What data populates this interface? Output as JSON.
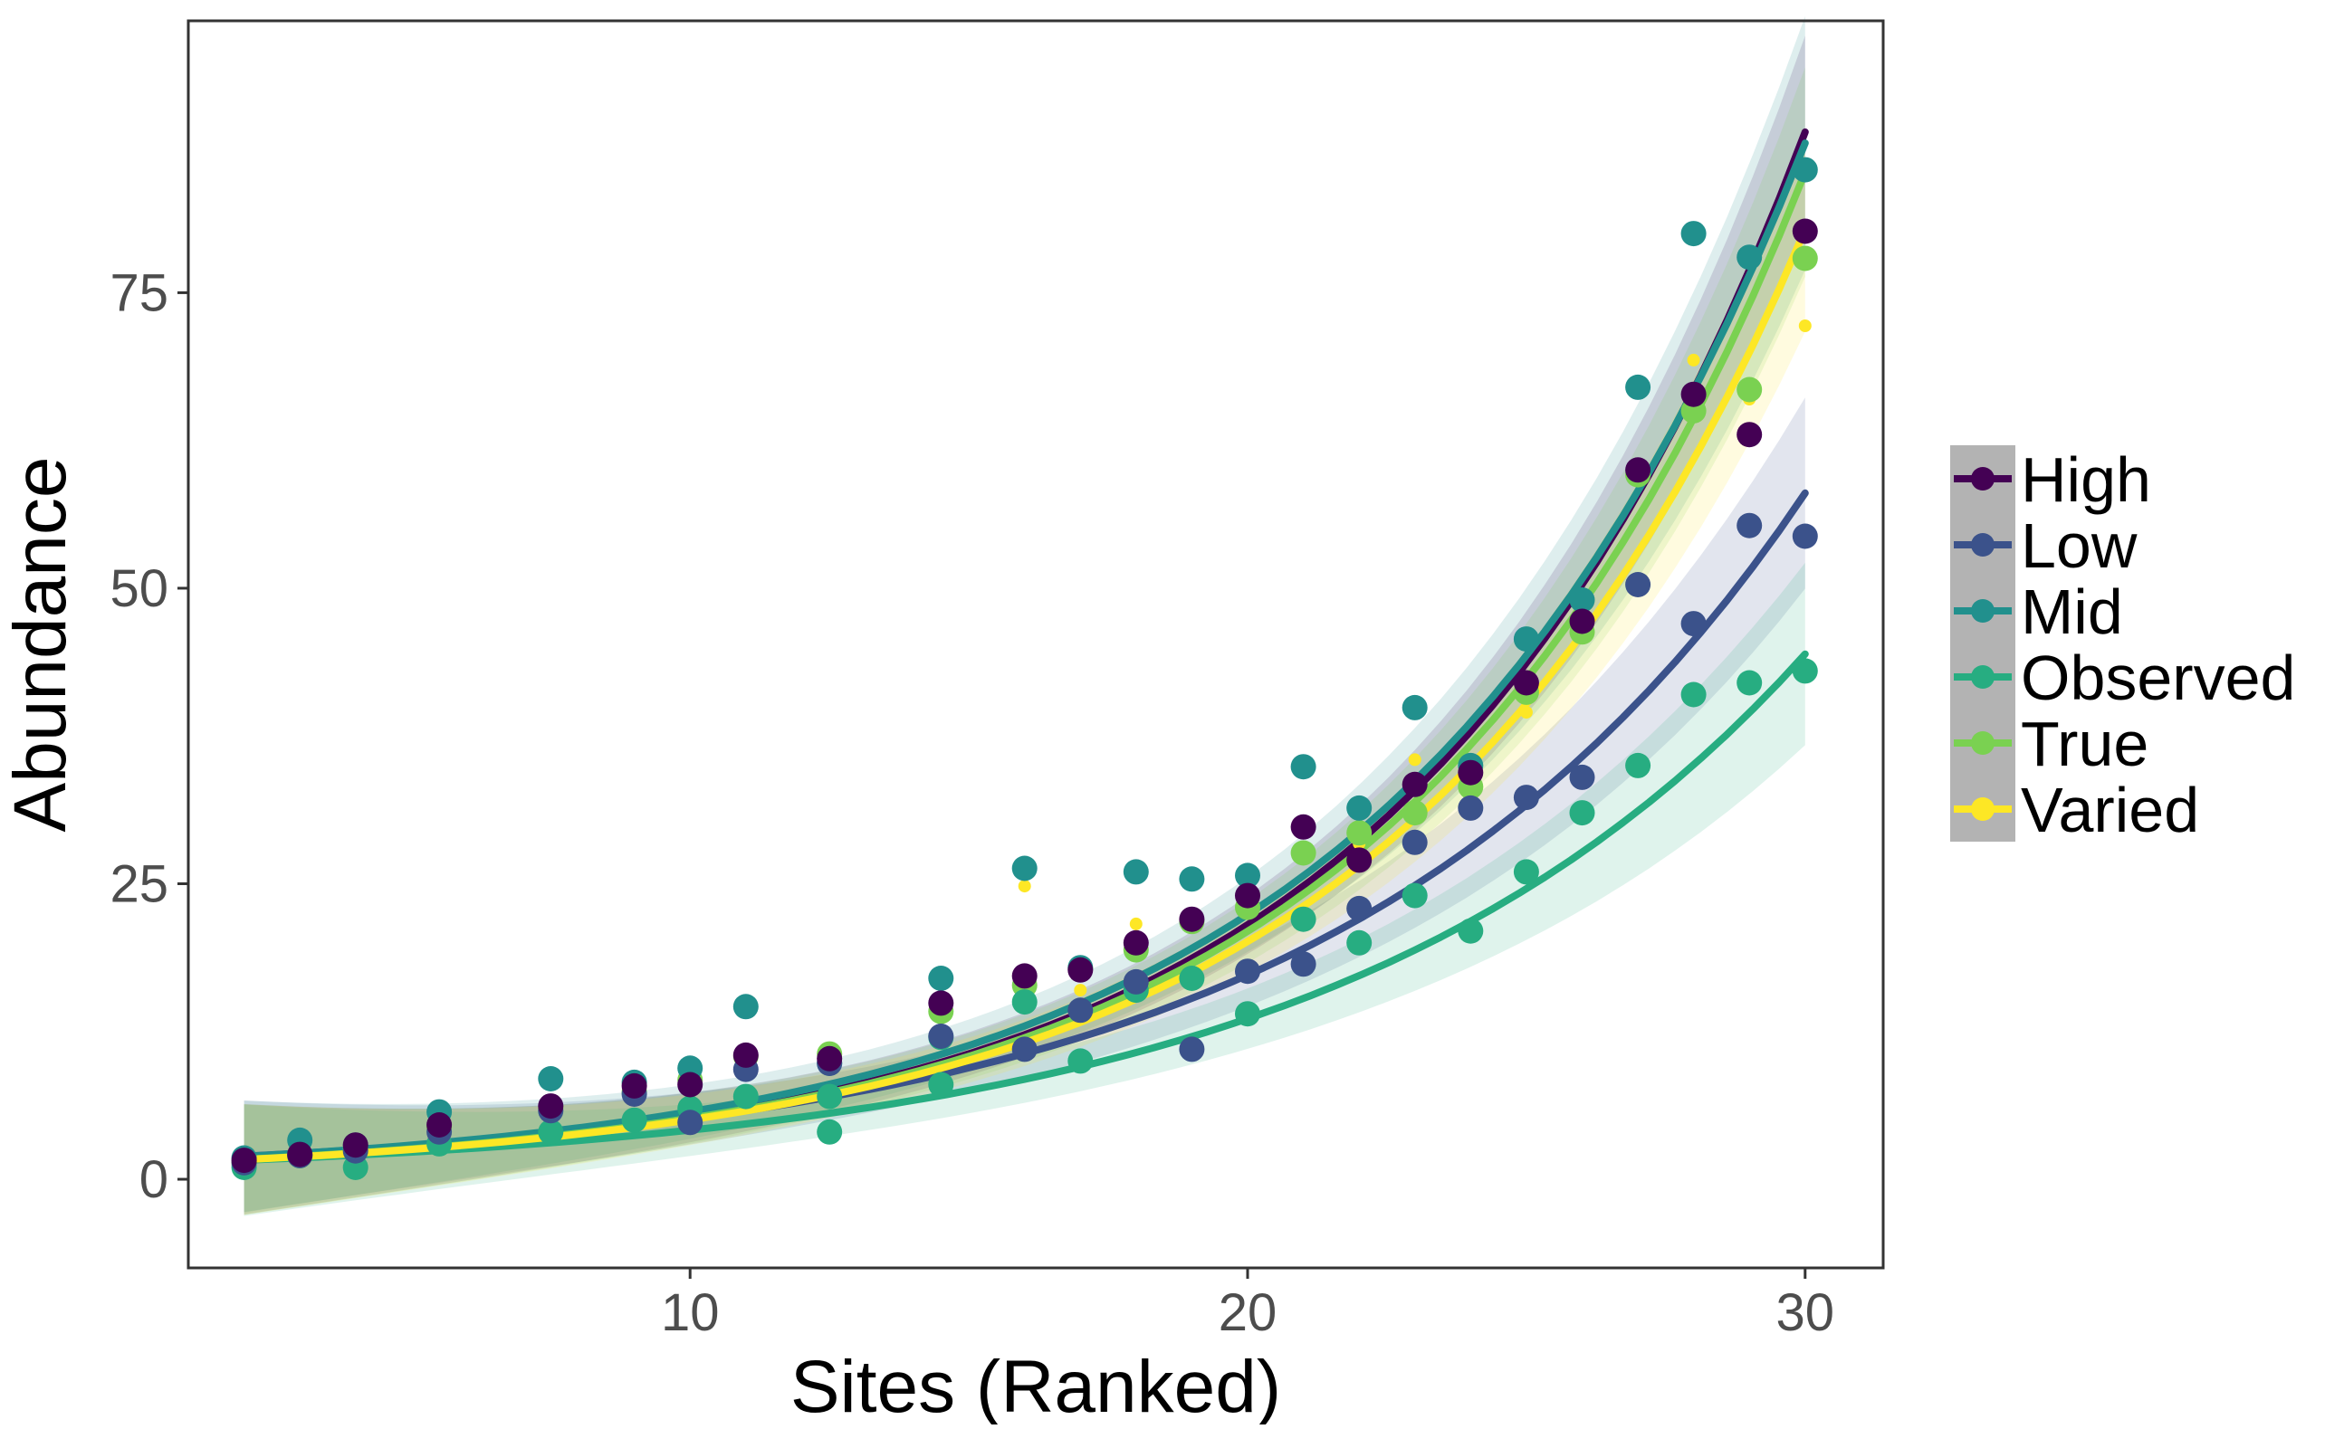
{
  "chart_data": {
    "type": "scatter",
    "xlabel": "Sites (Ranked)",
    "ylabel": "Abundance",
    "xlim": [
      1,
      31.4
    ],
    "ylim": [
      -7.5,
      98
    ],
    "x_ticks": [
      10,
      20,
      30
    ],
    "y_ticks": [
      0,
      25,
      50,
      75
    ],
    "grid": false,
    "legend_position": "right",
    "series": [
      {
        "name": "High",
        "color": "#440154",
        "curve": {
          "a": 1.27,
          "b": 0.1415
        },
        "ribbon_halfwidth": 0.04,
        "points": [
          [
            2,
            1.6
          ],
          [
            3,
            2.1
          ],
          [
            4,
            2.9
          ],
          [
            5.5,
            4.6
          ],
          [
            7.5,
            6.2
          ],
          [
            9,
            7.9
          ],
          [
            10,
            8.0
          ],
          [
            11,
            10.5
          ],
          [
            12.5,
            10.2
          ],
          [
            14.5,
            14.9
          ],
          [
            16,
            17.2
          ],
          [
            17,
            17.7
          ],
          [
            18,
            20.0
          ],
          [
            19,
            22.0
          ],
          [
            20,
            24.0
          ],
          [
            21,
            29.8
          ],
          [
            22,
            27.0
          ],
          [
            23,
            33.4
          ],
          [
            24,
            34.4
          ],
          [
            25,
            42.0
          ],
          [
            26,
            47.2
          ],
          [
            27,
            60.0
          ],
          [
            28,
            66.4
          ],
          [
            29,
            63.0
          ],
          [
            30,
            80.2
          ]
        ]
      },
      {
        "name": "Low",
        "color": "#3b528b",
        "curve": {
          "a": 1.53,
          "b": 0.1212
        },
        "ribbon_halfwidth": 0.06,
        "points": [
          [
            2,
            1.4
          ],
          [
            3,
            2.0
          ],
          [
            4,
            2.4
          ],
          [
            5.5,
            4.0
          ],
          [
            7.5,
            5.8
          ],
          [
            9,
            7.2
          ],
          [
            10,
            4.8
          ],
          [
            11,
            9.3
          ],
          [
            12.5,
            9.8
          ],
          [
            14.5,
            12.1
          ],
          [
            16,
            11.0
          ],
          [
            17,
            14.3
          ],
          [
            18,
            16.7
          ],
          [
            19,
            11.0
          ],
          [
            20,
            17.6
          ],
          [
            21,
            18.2
          ],
          [
            22,
            22.9
          ],
          [
            23,
            28.5
          ],
          [
            24,
            31.4
          ],
          [
            25,
            32.3
          ],
          [
            26,
            34.0
          ],
          [
            27,
            50.3
          ],
          [
            28,
            47.0
          ],
          [
            29,
            55.3
          ],
          [
            30,
            54.4
          ]
        ]
      },
      {
        "name": "Mid",
        "color": "#21908d",
        "curve": {
          "a": 1.46,
          "b": 0.1365
        },
        "ribbon_halfwidth": 0.07,
        "points": [
          [
            2,
            1.8
          ],
          [
            3,
            3.3
          ],
          [
            4,
            2.9
          ],
          [
            5.5,
            5.7
          ],
          [
            7.5,
            8.5
          ],
          [
            9,
            8.2
          ],
          [
            10,
            9.4
          ],
          [
            11,
            14.6
          ],
          [
            12.5,
            9.8
          ],
          [
            14.5,
            17.0
          ],
          [
            16,
            26.3
          ],
          [
            17,
            17.9
          ],
          [
            18,
            26.0
          ],
          [
            19,
            25.4
          ],
          [
            20,
            25.7
          ],
          [
            21,
            34.9
          ],
          [
            22,
            31.4
          ],
          [
            23,
            39.9
          ],
          [
            24,
            35.0
          ],
          [
            25,
            45.7
          ],
          [
            26,
            49.0
          ],
          [
            27,
            67.0
          ],
          [
            28,
            80.0
          ],
          [
            29,
            78.0
          ],
          [
            30,
            85.4
          ]
        ]
      },
      {
        "name": "Observed",
        "color": "#27ad81",
        "curve": {
          "a": 1.27,
          "b": 0.1185
        },
        "ribbon_halfwidth": 0.07,
        "points": [
          [
            2,
            1.0
          ],
          [
            3,
            2.0
          ],
          [
            4,
            1.0
          ],
          [
            5.5,
            3.0
          ],
          [
            7.5,
            4.0
          ],
          [
            9,
            5.0
          ],
          [
            10,
            6.0
          ],
          [
            11,
            7.0
          ],
          [
            12.5,
            4.0
          ],
          [
            12.5,
            7.0
          ],
          [
            14.5,
            8.0
          ],
          [
            14.5,
            12.0
          ],
          [
            16,
            15.0
          ],
          [
            17,
            10.0
          ],
          [
            18,
            16.0
          ],
          [
            19,
            17.0
          ],
          [
            20,
            14.0
          ],
          [
            21,
            22.0
          ],
          [
            22,
            20.0
          ],
          [
            23,
            24.0
          ],
          [
            24,
            21.0
          ],
          [
            25,
            26.0
          ],
          [
            26,
            31.0
          ],
          [
            27,
            35.0
          ],
          [
            28,
            41.0
          ],
          [
            29,
            42.0
          ],
          [
            30,
            43.0
          ]
        ]
      },
      {
        "name": "True",
        "color": "#7ad151",
        "curve": {
          "a": 1.27,
          "b": 0.1402
        },
        "ribbon_halfwidth": 0.05,
        "points": [
          [
            2,
            1.4
          ],
          [
            3,
            2.0
          ],
          [
            4,
            2.6
          ],
          [
            5.5,
            4.4
          ],
          [
            7.5,
            6.0
          ],
          [
            9,
            7.4
          ],
          [
            10,
            8.4
          ],
          [
            11,
            10.4
          ],
          [
            12.5,
            10.6
          ],
          [
            14.5,
            14.2
          ],
          [
            16,
            16.4
          ],
          [
            17,
            17.8
          ],
          [
            18,
            19.4
          ],
          [
            19,
            21.8
          ],
          [
            20,
            23.0
          ],
          [
            21,
            27.6
          ],
          [
            22,
            29.3
          ],
          [
            23,
            31.0
          ],
          [
            24,
            33.2
          ],
          [
            25,
            41.2
          ],
          [
            26,
            46.3
          ],
          [
            27,
            59.6
          ],
          [
            28,
            65.0
          ],
          [
            29,
            66.8
          ],
          [
            30,
            77.9
          ]
        ]
      },
      {
        "name": "Varied",
        "color": "#fde725",
        "curve": {
          "a": 1.26,
          "b": 0.1385
        },
        "ribbon_halfwidth": 0.05,
        "points": [
          [
            2,
            1.2
          ],
          [
            3,
            2.1
          ],
          [
            4,
            2.8
          ],
          [
            5.5,
            4.5
          ],
          [
            7.5,
            5.9
          ],
          [
            9,
            7.6
          ],
          [
            10,
            8.2
          ],
          [
            11,
            10.7
          ],
          [
            12.5,
            10.5
          ],
          [
            14.5,
            14.7
          ],
          [
            16,
            24.8
          ],
          [
            17,
            16.0
          ],
          [
            18,
            21.6
          ],
          [
            19,
            21.8
          ],
          [
            20,
            24.2
          ],
          [
            21,
            27.9
          ],
          [
            22,
            28.4
          ],
          [
            23,
            35.5
          ],
          [
            24,
            34.7
          ],
          [
            25,
            39.5
          ],
          [
            26,
            46.0
          ],
          [
            27,
            60.3
          ],
          [
            28,
            69.3
          ],
          [
            29,
            66.0
          ],
          [
            30,
            72.2
          ]
        ]
      }
    ]
  }
}
